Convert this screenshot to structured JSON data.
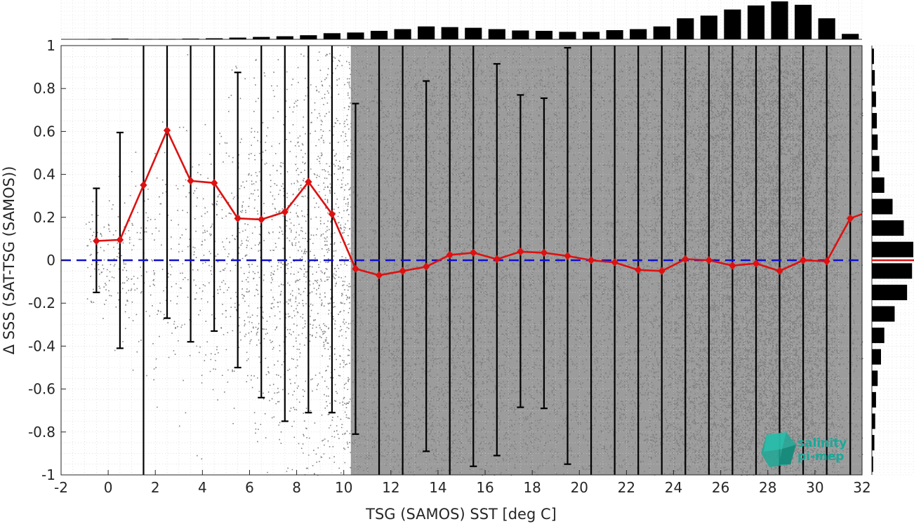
{
  "chart_data": {
    "type": "scatter",
    "title": "",
    "xlabel": "TSG (SAMOS) SST [deg C]",
    "ylabel": "Δ SSS (SAT-TSG (SAMOS))",
    "xlim": [
      -2,
      32
    ],
    "ylim": [
      -1,
      1
    ],
    "x_ticks": [
      -2,
      0,
      2,
      4,
      6,
      8,
      10,
      12,
      14,
      16,
      18,
      20,
      22,
      24,
      26,
      28,
      30,
      32
    ],
    "y_ticks": [
      -1,
      -0.8,
      -0.6,
      -0.4,
      -0.2,
      0,
      0.2,
      0.4,
      0.6,
      0.8,
      1
    ],
    "x_tick_labels": [
      "-2",
      "0",
      "2",
      "4",
      "6",
      "8",
      "10",
      "12",
      "14",
      "16",
      "18",
      "20",
      "22",
      "24",
      "26",
      "28",
      "30",
      "32"
    ],
    "y_tick_labels": [
      "-1",
      "-0.8",
      "-0.6",
      "-0.4",
      "-0.2",
      "0",
      "0.2",
      "0.4",
      "0.6",
      "0.8",
      "1"
    ],
    "grid": true,
    "reference_line": {
      "y": 0,
      "style": "dashed",
      "color": "#1010cc"
    },
    "bin_mean": {
      "color": "#dd1111",
      "x": [
        -0.5,
        0.5,
        1.5,
        2.5,
        3.5,
        4.5,
        5.5,
        6.5,
        7.5,
        8.5,
        9.5,
        10.5,
        11.5,
        12.5,
        13.5,
        14.5,
        15.5,
        16.5,
        17.5,
        18.5,
        19.5,
        20.5,
        21.5,
        22.5,
        23.5,
        24.5,
        25.5,
        26.5,
        27.5,
        28.5,
        29.5,
        30.5,
        31.5,
        32.0
      ],
      "y": [
        0.09,
        0.095,
        0.35,
        0.605,
        0.37,
        0.36,
        0.195,
        0.19,
        0.225,
        0.365,
        0.215,
        -0.04,
        -0.07,
        -0.05,
        -0.03,
        0.025,
        0.035,
        0.005,
        0.04,
        0.035,
        0.02,
        0.0,
        -0.01,
        -0.045,
        -0.05,
        0.005,
        0.0,
        -0.025,
        -0.015,
        -0.05,
        0.0,
        -0.005,
        0.195,
        0.215
      ]
    },
    "error_bars": {
      "color": "#000000",
      "x": [
        -0.5,
        0.5,
        1.5,
        2.5,
        3.5,
        4.5,
        5.5,
        6.5,
        7.5,
        8.5,
        9.5,
        10.5,
        11.5,
        12.5,
        13.5,
        14.5,
        15.5,
        16.5,
        17.5,
        18.5,
        19.5,
        20.5,
        21.5,
        22.5,
        23.5,
        24.5,
        25.5,
        26.5,
        27.5,
        28.5,
        29.5,
        30.5,
        31.5
      ],
      "low": [
        -0.15,
        -0.41,
        -1.0,
        -0.27,
        -0.38,
        -0.33,
        -0.5,
        -0.64,
        -0.75,
        -0.71,
        -0.71,
        -0.81,
        -1.0,
        -1.0,
        -0.89,
        -1.0,
        -0.96,
        -0.91,
        -0.685,
        -0.69,
        -0.95,
        -1.0,
        -1.0,
        -1.0,
        -1.0,
        -1.0,
        -1.0,
        -1.0,
        -1.0,
        -1.0,
        -1.0,
        -1.0,
        -1.0
      ],
      "high": [
        0.335,
        0.595,
        1.0,
        1.0,
        1.0,
        1.0,
        0.875,
        1.0,
        1.0,
        1.0,
        1.0,
        0.73,
        1.0,
        1.0,
        0.835,
        1.0,
        1.0,
        0.915,
        0.77,
        0.755,
        0.99,
        1.0,
        1.0,
        1.0,
        1.0,
        1.0,
        1.0,
        1.0,
        1.0,
        1.0,
        1.0,
        1.0,
        1.0
      ]
    },
    "scatter_color": "#808080",
    "top_histogram": {
      "color": "#000000",
      "x": [
        -0.5,
        0.5,
        1.5,
        2.5,
        3.5,
        4.5,
        5.5,
        6.5,
        7.5,
        8.5,
        9.5,
        10.5,
        11.5,
        12.5,
        13.5,
        14.5,
        15.5,
        16.5,
        17.5,
        18.5,
        19.5,
        20.5,
        21.5,
        22.5,
        23.5,
        24.5,
        25.5,
        26.5,
        27.5,
        28.5,
        29.5,
        30.5,
        31.5
      ],
      "counts": [
        1,
        2,
        1,
        1,
        2,
        3,
        5,
        7,
        9,
        12,
        18,
        20,
        25,
        30,
        38,
        36,
        34,
        30,
        26,
        25,
        22,
        22,
        27,
        30,
        38,
        62,
        70,
        88,
        100,
        112,
        102,
        62,
        16
      ]
    },
    "right_histogram": {
      "color": "#000000",
      "median_line_color": "#dd1111",
      "y": [
        -0.95,
        -0.85,
        -0.75,
        -0.65,
        -0.55,
        -0.45,
        -0.35,
        -0.25,
        -0.15,
        -0.05,
        0.05,
        0.15,
        0.25,
        0.35,
        0.45,
        0.55,
        0.65,
        0.75,
        0.85,
        0.95
      ],
      "counts": [
        3,
        6,
        8,
        10,
        14,
        22,
        30,
        55,
        85,
        97,
        100,
        77,
        50,
        30,
        18,
        14,
        12,
        10,
        7,
        5
      ]
    }
  },
  "logo": {
    "line1": "salinity",
    "line2": "pi-mep",
    "color": "#19a99a"
  }
}
